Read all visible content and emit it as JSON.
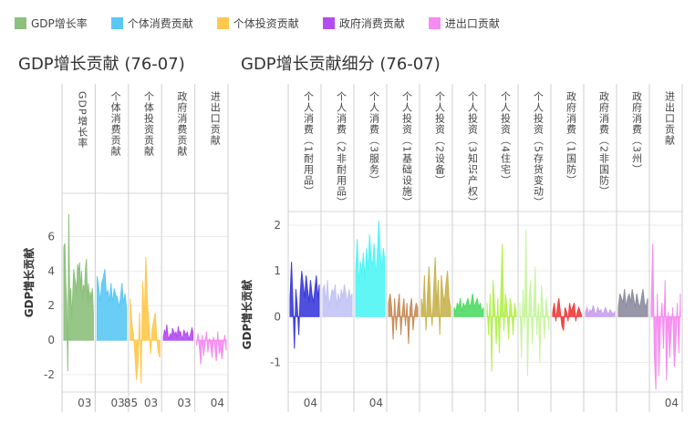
{
  "legend": [
    {
      "label": "GDP增长率",
      "color": "#8cc07c"
    },
    {
      "label": "个体消费贡献",
      "color": "#5ac8f5"
    },
    {
      "label": "个体投资贡献",
      "color": "#ffc94c"
    },
    {
      "label": "政府消费贡献",
      "color": "#b44cf0"
    },
    {
      "label": "进出口贡献",
      "color": "#f58cf0"
    }
  ],
  "chart_data": [
    {
      "type": "area",
      "title": "GDP增长贡献 (76-07)",
      "ylabel": "GDP增长贡献",
      "ylim": [
        -3,
        8.5
      ],
      "yticks": [
        -2,
        0,
        2,
        4,
        6
      ],
      "panels": [
        {
          "label": "GDP增长率",
          "color": "#8cc07c",
          "xticks": [
            "03"
          ],
          "values": [
            5.4,
            5.6,
            3.2,
            2.1,
            -1.8,
            7.3,
            2.0,
            3.0,
            1.2,
            2.5,
            4.1,
            3.6,
            3.3,
            2.6,
            4.4,
            3.9,
            4.5,
            2.8,
            4.0,
            2.3,
            3.2,
            2.8,
            4.2,
            4.7,
            2.2,
            3.3,
            2.1,
            2.8,
            2.4,
            3.0,
            1.5
          ]
        },
        {
          "label": "个体消费贡献",
          "color": "#5ac8f5",
          "xticks": [
            "03"
          ],
          "values": [
            3.7,
            3.1,
            2.2,
            3.3,
            3.6,
            4.1,
            2.6,
            2.9,
            2.2,
            3.3,
            2.1,
            3.0,
            2.6,
            2.5,
            1.9,
            2.4,
            3.3,
            2.1,
            2.7,
            1.8
          ]
        },
        {
          "label": "个体投资贡献",
          "color": "#ffc94c",
          "xticks": [
            "85",
            "03"
          ],
          "values": [
            2.4,
            1.0,
            0.4,
            -0.8,
            -2.3,
            -1.4,
            1.6,
            -2.5,
            3.4,
            1.1,
            4.8,
            2.2,
            0.9,
            -0.8,
            0.6,
            1.1,
            1.6,
            0.2,
            -0.7,
            -1.0
          ]
        },
        {
          "label": "政府消费贡献",
          "color": "#b44cf0",
          "xticks": [
            "03"
          ],
          "values": [
            0.2,
            0.6,
            0.3,
            0.9,
            0.2,
            0.1,
            0.4,
            0.1,
            0.7,
            0.5,
            0.3,
            0.5,
            0.1,
            0.8,
            0.4,
            0.5,
            0.2,
            0.1,
            0.6,
            0.4,
            0.3,
            0.5,
            0.1,
            0.2,
            0.4,
            0.7,
            0.5
          ]
        },
        {
          "label": "进出口贡献",
          "color": "#f58cf0",
          "xticks": [
            "04"
          ],
          "values": [
            -0.3,
            0.4,
            -0.5,
            -1.4,
            0.3,
            -0.9,
            -0.2,
            0.5,
            -0.7,
            0.1,
            -0.3,
            -1.0,
            0.2,
            -0.5,
            -1.2,
            0.5,
            -0.8,
            -0.4,
            -1.1,
            -0.3,
            0.3,
            -0.6
          ]
        }
      ]
    },
    {
      "type": "area",
      "title": "GDP增长贡献细分 (76-07)",
      "ylabel": "GDP增长贡献",
      "ylim": [
        -1.65,
        2.3
      ],
      "yticks": [
        -1,
        0,
        1,
        2
      ],
      "panels": [
        {
          "label": "个人消费（1耐用品）",
          "color": "#3c3cdc",
          "xticks": [
            "04"
          ],
          "values": [
            0.4,
            1.2,
            0.3,
            -0.7,
            0.6,
            0.2,
            -0.4,
            0.5,
            1.0,
            0.7,
            0.4,
            0.9,
            0.6,
            0.3,
            0.8,
            0.5,
            0.3,
            0.6,
            0.9,
            0.4,
            0.7
          ]
        },
        {
          "label": "个人消费（2非耐用品）",
          "color": "#c3c3f5",
          "xticks": [],
          "values": [
            0.6,
            0.7,
            0.3,
            0.8,
            0.2,
            0.4,
            0.6,
            0.5,
            0.7,
            0.2,
            0.5,
            0.3,
            0.6,
            0.4,
            0.7,
            0.5,
            0.3,
            0.6,
            0.4,
            0.5
          ]
        },
        {
          "label": "个人消费（3服务）",
          "color": "#50f5f5",
          "xticks": [
            "04"
          ],
          "values": [
            1.0,
            1.7,
            0.7,
            1.2,
            0.9,
            1.4,
            0.8,
            1.5,
            1.0,
            1.8,
            1.3,
            1.1,
            1.6,
            0.9,
            1.3,
            2.1,
            1.4,
            1.0,
            1.5,
            1.2
          ]
        },
        {
          "label": "个人投资（1基础设施）",
          "color": "#c88c5a",
          "xticks": [],
          "values": [
            0.3,
            0.5,
            0.2,
            -0.5,
            0.4,
            -0.3,
            0.2,
            0.5,
            -0.4,
            0.1,
            0.4,
            -0.2,
            0.3,
            -0.6,
            0.2,
            0.4,
            -0.3,
            0.1,
            0.3,
            0.2
          ]
        },
        {
          "label": "个人投资（2设备）",
          "color": "#c8b450",
          "xticks": [],
          "values": [
            0.4,
            0.1,
            0.9,
            -0.3,
            0.5,
            1.1,
            0.3,
            -0.2,
            0.6,
            1.3,
            0.2,
            0.8,
            -0.4,
            0.9,
            0.5,
            0.3,
            0.7,
            1.0,
            0.4,
            0.2
          ]
        },
        {
          "label": "个人投资（3知识产权）",
          "color": "#50dc64",
          "xticks": [],
          "values": [
            0.2,
            0.1,
            0.3,
            0.2,
            0.4,
            0.1,
            0.3,
            0.2,
            0.3,
            0.4,
            0.2,
            0.3,
            0.5,
            0.2,
            0.3,
            0.4,
            0.2,
            0.3,
            0.1,
            0.2
          ]
        },
        {
          "label": "个人投资（4住宅）",
          "color": "#b4f050",
          "xticks": [],
          "values": [
            0.3,
            -0.4,
            0.5,
            -1.2,
            0.8,
            0.2,
            -0.6,
            0.4,
            -0.8,
            0.6,
            1.6,
            -0.3,
            0.5,
            0.2,
            -0.5,
            0.4,
            0.2,
            -0.4,
            0.3,
            0.1
          ]
        },
        {
          "label": "个人投资（5存货变动）",
          "color": "#c8f5a0",
          "xticks": [],
          "values": [
            0.3,
            -0.9,
            0.6,
            -0.2,
            1.9,
            -1.3,
            0.4,
            0.8,
            -0.6,
            0.2,
            1.1,
            -0.4,
            0.3,
            -1.0,
            0.7,
            0.2,
            -0.5,
            0.4,
            0.1,
            -0.3
          ]
        },
        {
          "label": "政府消费（1国防）",
          "color": "#f03c3c",
          "xticks": [],
          "values": [
            0.1,
            0.3,
            -0.1,
            0.2,
            0.4,
            0.1,
            -0.2,
            -0.3,
            0.2,
            0.1,
            -0.1,
            0.3,
            0.1,
            0.2,
            0.3,
            -0.1,
            0.1,
            0.2,
            0.1,
            0.0
          ]
        },
        {
          "label": "政府消费（2非国防）",
          "color": "#c8a0f0",
          "xticks": [],
          "values": [
            0.1,
            0.2,
            0.05,
            0.15,
            0.1,
            0.25,
            0.1,
            0.05,
            0.2,
            0.1,
            0.15,
            0.05,
            0.1,
            0.2,
            0.1,
            0.05,
            0.15,
            0.1,
            0.05,
            0.1
          ]
        },
        {
          "label": "政府消费（3州）",
          "color": "#8c8ca0",
          "xticks": [],
          "values": [
            0.2,
            0.5,
            0.4,
            0.3,
            0.6,
            0.2,
            0.4,
            0.5,
            0.3,
            0.6,
            0.4,
            0.2,
            0.5,
            0.3,
            0.2,
            0.4,
            0.6,
            0.3,
            0.2,
            0.4
          ]
        },
        {
          "label": "进出口贡献",
          "color": "#f58cf0",
          "xticks": [
            "04"
          ],
          "values": [
            0.2,
            1.6,
            -0.8,
            -1.6,
            0.5,
            -1.3,
            -0.2,
            0.3,
            -0.7,
            0.8,
            -1.4,
            0.1,
            -0.9,
            -0.3,
            0.2,
            -1.1,
            -0.6,
            0.3,
            -0.8,
            0.5
          ]
        }
      ]
    }
  ]
}
